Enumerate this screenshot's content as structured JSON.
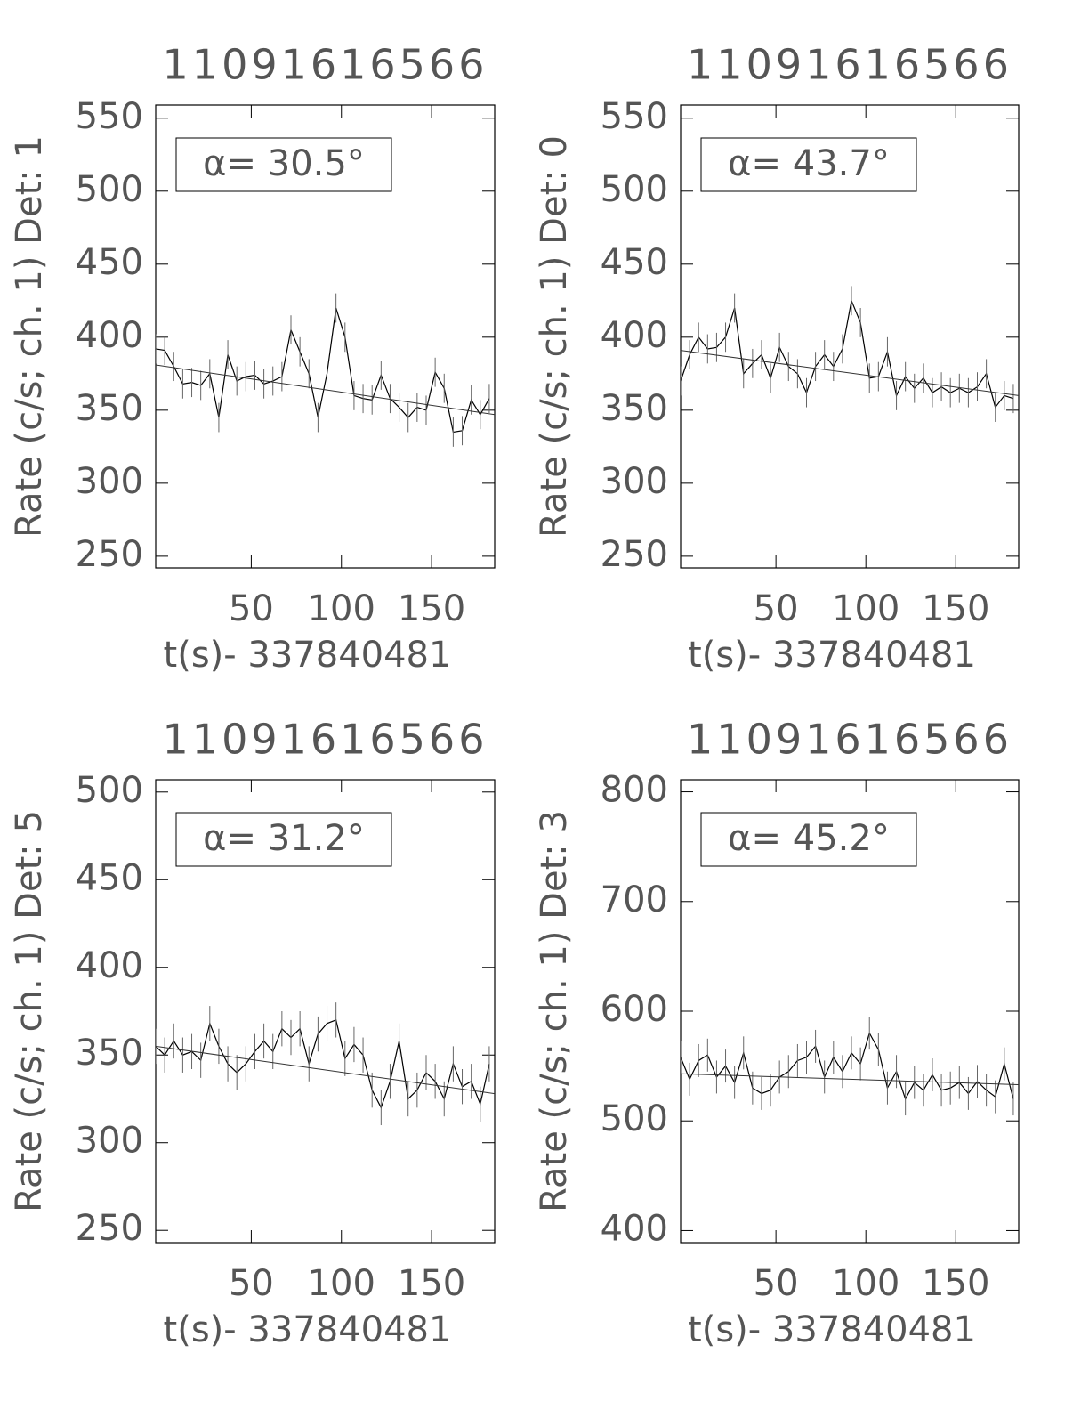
{
  "chart_data": [
    {
      "type": "line",
      "title": "11091616566",
      "ylabel": "Rate (c/s; ch. 1) Det: 1",
      "xlabel": "t(s)- 337840481",
      "annotation": "α= 30.5°",
      "x": [
        -3,
        2,
        7,
        12,
        17,
        22,
        27,
        32,
        37,
        42,
        47,
        52,
        57,
        62,
        67,
        72,
        77,
        82,
        87,
        92,
        97,
        102,
        107,
        112,
        117,
        122,
        127,
        132,
        137,
        142,
        147,
        152,
        157,
        162,
        167,
        172,
        177,
        182
      ],
      "xlim": [
        -3,
        185
      ],
      "xticks": [
        50,
        100,
        150
      ],
      "ylim": [
        242,
        559
      ],
      "yticks": [
        250,
        300,
        350,
        400,
        450,
        500,
        550
      ],
      "series": [
        {
          "color": "#000000",
          "error": 10,
          "values": [
            392,
            391,
            380,
            368,
            369,
            367,
            375,
            345,
            388,
            370,
            373,
            374,
            368,
            370,
            373,
            405,
            390,
            375,
            345,
            375,
            420,
            400,
            360,
            358,
            357,
            374,
            358,
            352,
            345,
            352,
            350,
            376,
            365,
            335,
            336,
            357,
            347,
            358
          ]
        }
      ],
      "fit": {
        "color": "#333333",
        "x": [
          -3,
          185
        ],
        "values": [
          381,
          347
        ]
      }
    },
    {
      "type": "line",
      "title": "11091616566",
      "ylabel": "Rate (c/s; ch. 1) Det: 0",
      "xlabel": "t(s)- 337840481",
      "annotation": "α= 43.7°",
      "x": [
        -3,
        2,
        7,
        12,
        17,
        22,
        27,
        32,
        37,
        42,
        47,
        52,
        57,
        62,
        67,
        72,
        77,
        82,
        87,
        92,
        97,
        102,
        107,
        112,
        117,
        122,
        127,
        132,
        137,
        142,
        147,
        152,
        157,
        162,
        167,
        172,
        177,
        182
      ],
      "xlim": [
        -3,
        185
      ],
      "xticks": [
        50,
        100,
        150
      ],
      "ylim": [
        242,
        559
      ],
      "yticks": [
        250,
        300,
        350,
        400,
        450,
        500,
        550
      ],
      "series": [
        {
          "color": "#000000",
          "error": 10,
          "values": [
            370,
            388,
            400,
            392,
            393,
            400,
            420,
            375,
            382,
            388,
            372,
            393,
            380,
            375,
            362,
            380,
            388,
            380,
            392,
            425,
            410,
            372,
            373,
            390,
            360,
            373,
            365,
            372,
            362,
            366,
            362,
            365,
            362,
            366,
            375,
            352,
            360,
            358
          ]
        }
      ],
      "fit": {
        "color": "#333333",
        "x": [
          -3,
          185
        ],
        "values": [
          391,
          360
        ]
      }
    },
    {
      "type": "line",
      "title": "11091616566",
      "ylabel": "Rate (c/s; ch. 1) Det: 5",
      "xlabel": "t(s)- 337840481",
      "annotation": "α= 31.2°",
      "x": [
        -3,
        2,
        7,
        12,
        17,
        22,
        27,
        32,
        37,
        42,
        47,
        52,
        57,
        62,
        67,
        72,
        77,
        82,
        87,
        92,
        97,
        102,
        107,
        112,
        117,
        122,
        127,
        132,
        137,
        142,
        147,
        152,
        157,
        162,
        167,
        172,
        177,
        182
      ],
      "xlim": [
        -3,
        185
      ],
      "xticks": [
        50,
        100,
        150
      ],
      "ylim": [
        243,
        507
      ],
      "yticks": [
        250,
        300,
        350,
        400,
        450,
        500
      ],
      "series": [
        {
          "color": "#000000",
          "error": 10,
          "values": [
            355,
            350,
            358,
            350,
            352,
            347,
            368,
            355,
            345,
            340,
            345,
            352,
            358,
            352,
            365,
            360,
            365,
            345,
            362,
            368,
            370,
            348,
            356,
            350,
            330,
            320,
            335,
            358,
            325,
            330,
            340,
            335,
            325,
            345,
            332,
            335,
            322,
            345
          ]
        }
      ],
      "fit": {
        "color": "#333333",
        "x": [
          -3,
          185
        ],
        "values": [
          355,
          328
        ]
      }
    },
    {
      "type": "line",
      "title": "11091616566",
      "ylabel": "Rate (c/s; ch. 1) Det: 3",
      "xlabel": "t(s)- 337840481",
      "annotation": "α= 45.2°",
      "x": [
        -3,
        2,
        7,
        12,
        17,
        22,
        27,
        32,
        37,
        42,
        47,
        52,
        57,
        62,
        67,
        72,
        77,
        82,
        87,
        92,
        97,
        102,
        107,
        112,
        117,
        122,
        127,
        132,
        137,
        142,
        147,
        152,
        157,
        162,
        167,
        172,
        177,
        182
      ],
      "xlim": [
        -3,
        185
      ],
      "xticks": [
        50,
        100,
        150
      ],
      "ylim": [
        389,
        811
      ],
      "yticks": [
        400,
        500,
        600,
        700,
        800
      ],
      "series": [
        {
          "color": "#000000",
          "error": 15,
          "values": [
            558,
            538,
            555,
            560,
            540,
            550,
            535,
            562,
            530,
            525,
            528,
            540,
            545,
            555,
            558,
            568,
            540,
            558,
            545,
            562,
            552,
            580,
            565,
            530,
            545,
            520,
            535,
            528,
            542,
            528,
            530,
            535,
            525,
            536,
            528,
            522,
            552,
            520
          ]
        }
      ],
      "fit": {
        "color": "#333333",
        "x": [
          -3,
          185
        ],
        "values": [
          543,
          533
        ]
      }
    }
  ]
}
